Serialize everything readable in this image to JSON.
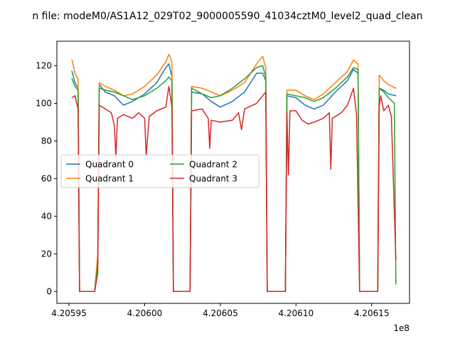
{
  "chart_data": {
    "type": "line",
    "title": "n file: modeM0/AS1A12_029T02_9000005590_41034cztM0_level2_quad_clean",
    "xlabel": "",
    "ylabel": "",
    "x_offset_label": "1e8",
    "xlim": [
      4.205942,
      4.206175
    ],
    "ylim": [
      -6.3,
      133
    ],
    "x_ticks": [
      4.20595,
      4.206,
      4.20605,
      4.2061,
      4.20615
    ],
    "x_tick_labels": [
      "4.20595",
      "4.20600",
      "4.20605",
      "4.20610",
      "4.20615"
    ],
    "y_ticks": [
      0,
      20,
      40,
      60,
      80,
      100,
      120
    ],
    "y_tick_labels": [
      "0",
      "20",
      "40",
      "60",
      "80",
      "100",
      "120"
    ],
    "grid": false,
    "legend": {
      "location": "center-left",
      "ncol": 2
    },
    "series": [
      {
        "name": "Quadrant 0",
        "color": "#1f77b4",
        "points": [
          [
            4.205952,
            117
          ],
          [
            4.205954,
            111
          ],
          [
            4.205956,
            108
          ],
          [
            4.205957,
            0
          ],
          [
            4.205967,
            0
          ],
          [
            4.205969,
            18
          ],
          [
            4.20597,
            110
          ],
          [
            4.205974,
            106
          ],
          [
            4.20598,
            104
          ],
          [
            4.205986,
            99
          ],
          [
            4.205992,
            101
          ],
          [
            4.206,
            105
          ],
          [
            4.206008,
            111
          ],
          [
            4.206014,
            119
          ],
          [
            4.206016,
            121
          ],
          [
            4.206018,
            114
          ],
          [
            4.206019,
            0
          ],
          [
            4.20603,
            0
          ],
          [
            4.206031,
            106
          ],
          [
            4.206038,
            105
          ],
          [
            4.206044,
            101
          ],
          [
            4.20605,
            98
          ],
          [
            4.206058,
            101
          ],
          [
            4.206066,
            106
          ],
          [
            4.206074,
            116
          ],
          [
            4.206078,
            116
          ],
          [
            4.20608,
            112
          ],
          [
            4.206081,
            0
          ],
          [
            4.206093,
            0
          ],
          [
            4.206094,
            104
          ],
          [
            4.2061,
            103
          ],
          [
            4.206106,
            99
          ],
          [
            4.206112,
            97
          ],
          [
            4.206118,
            99
          ],
          [
            4.206126,
            106
          ],
          [
            4.206134,
            112
          ],
          [
            4.206138,
            118
          ],
          [
            4.206141,
            116
          ],
          [
            4.206142,
            0
          ],
          [
            4.206154,
            0
          ],
          [
            4.206155,
            108
          ],
          [
            4.206158,
            107
          ],
          [
            4.206161,
            105
          ],
          [
            4.206166,
            104
          ]
        ]
      },
      {
        "name": "Quadrant 1",
        "color": "#ff7f0e",
        "points": [
          [
            4.205952,
            123
          ],
          [
            4.205954,
            116
          ],
          [
            4.205956,
            113
          ],
          [
            4.205957,
            0
          ],
          [
            4.205967,
            0
          ],
          [
            4.205969,
            20
          ],
          [
            4.20597,
            111
          ],
          [
            4.205974,
            109
          ],
          [
            4.20598,
            107
          ],
          [
            4.205986,
            104
          ],
          [
            4.205992,
            105
          ],
          [
            4.206,
            109
          ],
          [
            4.206008,
            115
          ],
          [
            4.206014,
            122
          ],
          [
            4.206016,
            126
          ],
          [
            4.206018,
            122
          ],
          [
            4.206019,
            0
          ],
          [
            4.20603,
            0
          ],
          [
            4.206031,
            109
          ],
          [
            4.206038,
            108
          ],
          [
            4.206044,
            106
          ],
          [
            4.20605,
            104
          ],
          [
            4.206058,
            107
          ],
          [
            4.206066,
            111
          ],
          [
            4.206074,
            121
          ],
          [
            4.206078,
            125
          ],
          [
            4.20608,
            119
          ],
          [
            4.206081,
            0
          ],
          [
            4.206093,
            0
          ],
          [
            4.206094,
            107
          ],
          [
            4.2061,
            107
          ],
          [
            4.206106,
            104
          ],
          [
            4.206112,
            102
          ],
          [
            4.206118,
            105
          ],
          [
            4.206126,
            111
          ],
          [
            4.206134,
            117
          ],
          [
            4.206138,
            123
          ],
          [
            4.206141,
            121
          ],
          [
            4.206142,
            0
          ],
          [
            4.206154,
            0
          ],
          [
            4.206155,
            115
          ],
          [
            4.206158,
            112
          ],
          [
            4.206161,
            110
          ],
          [
            4.206166,
            108
          ]
        ]
      },
      {
        "name": "Quadrant 2",
        "color": "#2ca02c",
        "points": [
          [
            4.205952,
            113
          ],
          [
            4.205954,
            109
          ],
          [
            4.205956,
            107
          ],
          [
            4.205957,
            0
          ],
          [
            4.205967,
            0
          ],
          [
            4.205969,
            15
          ],
          [
            4.20597,
            108
          ],
          [
            4.205974,
            107
          ],
          [
            4.20598,
            106
          ],
          [
            4.205986,
            104
          ],
          [
            4.205992,
            102
          ],
          [
            4.206,
            104
          ],
          [
            4.206008,
            108
          ],
          [
            4.206014,
            112
          ],
          [
            4.206016,
            114
          ],
          [
            4.206018,
            112
          ],
          [
            4.206019,
            0
          ],
          [
            4.20603,
            0
          ],
          [
            4.206031,
            108
          ],
          [
            4.206038,
            105
          ],
          [
            4.206044,
            103
          ],
          [
            4.20605,
            104
          ],
          [
            4.206058,
            108
          ],
          [
            4.206066,
            113
          ],
          [
            4.206074,
            119
          ],
          [
            4.206078,
            120
          ],
          [
            4.20608,
            114
          ],
          [
            4.206081,
            0
          ],
          [
            4.206093,
            0
          ],
          [
            4.206094,
            105
          ],
          [
            4.2061,
            104
          ],
          [
            4.206106,
            103
          ],
          [
            4.206112,
            101
          ],
          [
            4.206118,
            103
          ],
          [
            4.206126,
            108
          ],
          [
            4.206134,
            114
          ],
          [
            4.206138,
            119
          ],
          [
            4.206141,
            118
          ],
          [
            4.206142,
            0
          ],
          [
            4.206154,
            0
          ],
          [
            4.206155,
            108
          ],
          [
            4.206158,
            106
          ],
          [
            4.206161,
            103
          ],
          [
            4.206165,
            100
          ],
          [
            4.206166,
            4
          ]
        ]
      },
      {
        "name": "Quadrant 3",
        "color": "#d62728",
        "points": [
          [
            4.205952,
            103
          ],
          [
            4.205954,
            104
          ],
          [
            4.205956,
            97
          ],
          [
            4.205957,
            0
          ],
          [
            4.205967,
            0
          ],
          [
            4.205969,
            10
          ],
          [
            4.20597,
            99
          ],
          [
            4.205974,
            97
          ],
          [
            4.205978,
            95
          ],
          [
            4.20598,
            88
          ],
          [
            4.205981,
            71
          ],
          [
            4.205982,
            92
          ],
          [
            4.205986,
            94
          ],
          [
            4.205992,
            92
          ],
          [
            4.205996,
            95
          ],
          [
            4.206,
            92
          ],
          [
            4.206001,
            72
          ],
          [
            4.206003,
            93
          ],
          [
            4.206008,
            96
          ],
          [
            4.206014,
            98
          ],
          [
            4.206016,
            109
          ],
          [
            4.206018,
            98
          ],
          [
            4.206019,
            0
          ],
          [
            4.20603,
            0
          ],
          [
            4.206031,
            96
          ],
          [
            4.206038,
            97
          ],
          [
            4.206042,
            92
          ],
          [
            4.206043,
            76
          ],
          [
            4.206044,
            91
          ],
          [
            4.20605,
            90
          ],
          [
            4.206058,
            91
          ],
          [
            4.206062,
            95
          ],
          [
            4.206064,
            86
          ],
          [
            4.206066,
            97
          ],
          [
            4.206074,
            100
          ],
          [
            4.206078,
            104
          ],
          [
            4.20608,
            106
          ],
          [
            4.206081,
            0
          ],
          [
            4.206093,
            0
          ],
          [
            4.206094,
            95
          ],
          [
            4.206095,
            62
          ],
          [
            4.206096,
            96
          ],
          [
            4.2061,
            96
          ],
          [
            4.206104,
            91
          ],
          [
            4.206108,
            89
          ],
          [
            4.206112,
            90
          ],
          [
            4.206118,
            92
          ],
          [
            4.206122,
            95
          ],
          [
            4.206123,
            65
          ],
          [
            4.206124,
            92
          ],
          [
            4.20613,
            95
          ],
          [
            4.206134,
            99
          ],
          [
            4.206138,
            108
          ],
          [
            4.20614,
            94
          ],
          [
            4.206142,
            0
          ],
          [
            4.206154,
            0
          ],
          [
            4.206155,
            98
          ],
          [
            4.206156,
            104
          ],
          [
            4.206158,
            96
          ],
          [
            4.206161,
            99
          ],
          [
            4.206163,
            93
          ],
          [
            4.206166,
            17
          ]
        ]
      }
    ]
  }
}
